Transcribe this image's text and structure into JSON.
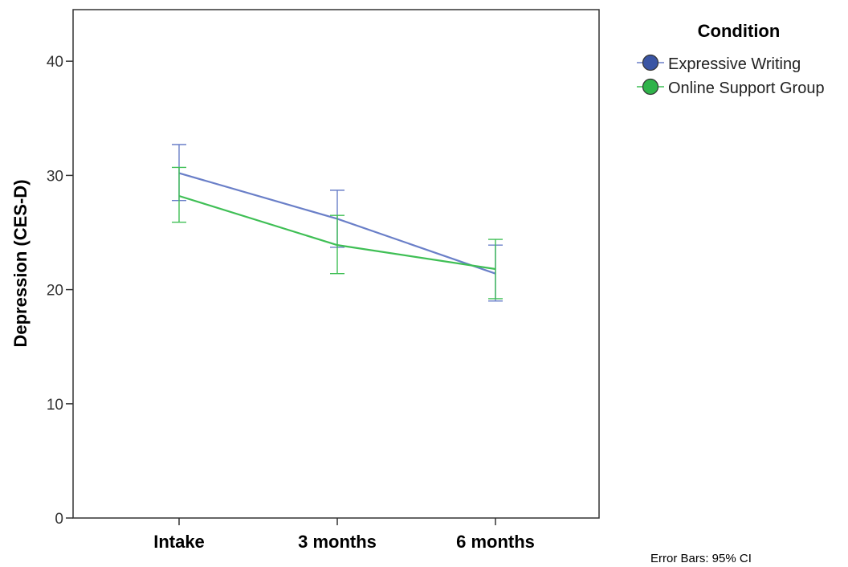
{
  "chart_data": {
    "type": "line",
    "categories": [
      "Intake",
      "3 months",
      "6 months"
    ],
    "ylabel": "Depression (CES-D)",
    "xlabel": "",
    "ylim": [
      0,
      44.5
    ],
    "yticks": [
      "0",
      "10",
      "20",
      "30",
      "40"
    ],
    "grid": false,
    "legend_title": "Condition",
    "legend_position": "top-right",
    "footnote": "Error Bars: 95% CI",
    "series": [
      {
        "name": "Expressive Writing",
        "color": "#3a55a4",
        "line_color": "#6a7fc8",
        "values": [
          30.2,
          26.2,
          21.4
        ],
        "ci_lower": [
          27.8,
          23.7,
          19.0
        ],
        "ci_upper": [
          32.7,
          28.7,
          23.9
        ]
      },
      {
        "name": "Online Support Group",
        "color": "#2fb34a",
        "line_color": "#3fbf55",
        "values": [
          28.2,
          23.9,
          21.8
        ],
        "ci_lower": [
          25.9,
          21.4,
          19.2
        ],
        "ci_upper": [
          30.7,
          26.5,
          24.4
        ]
      }
    ]
  }
}
